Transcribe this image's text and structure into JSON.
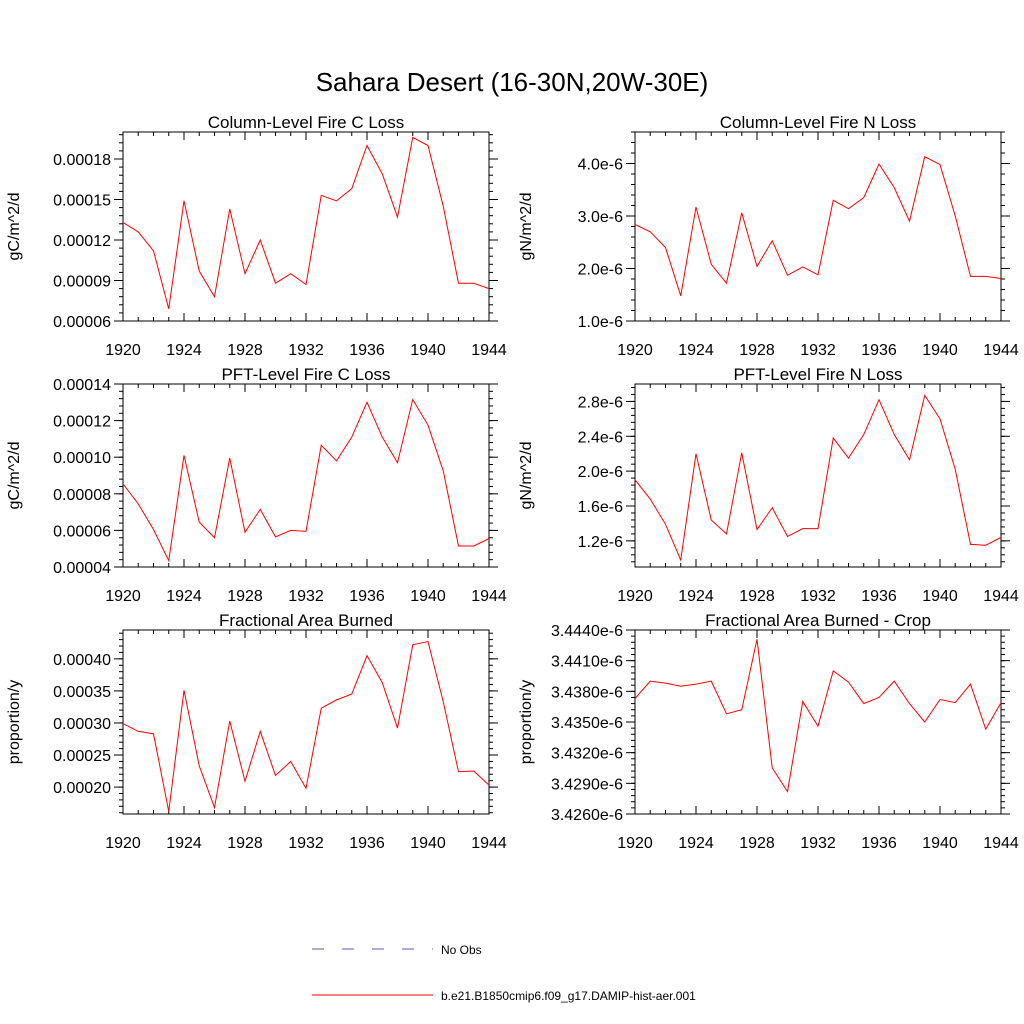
{
  "figure_title": "Sahara Desert (16-30N,20W-30E)",
  "legend": {
    "obs_label": "No Obs",
    "obs_color": "#5a5ab4",
    "model_label": "b.e21.B1850cmip6.f09_g17.DAMIP-hist-aer.001",
    "model_color": "#ff0000"
  },
  "chart_data": [
    {
      "type": "line",
      "title": "Column-Level Fire C Loss",
      "ylabel": "gC/m^2/d",
      "xlim": [
        1920,
        1944
      ],
      "ylim": [
        6e-05,
        0.0002
      ],
      "xticks": [
        1920,
        1924,
        1928,
        1932,
        1936,
        1940,
        1944
      ],
      "yticks": [
        6e-05,
        9e-05,
        0.00012,
        0.00015,
        0.00018
      ],
      "ytick_labels": [
        "0.00006",
        "0.00009",
        "0.00012",
        "0.00015",
        "0.00018"
      ],
      "x": [
        1920,
        1921,
        1922,
        1923,
        1924,
        1925,
        1926,
        1927,
        1928,
        1929,
        1930,
        1931,
        1932,
        1933,
        1934,
        1935,
        1936,
        1937,
        1938,
        1939,
        1940,
        1941,
        1942,
        1943,
        1944
      ],
      "series": [
        {
          "name": "b.e21.B1850cmip6.f09_g17.DAMIP-hist-aer.001",
          "values": [
            0.000133,
            0.000126,
            0.000112,
            6.9e-05,
            0.000149,
            9.7e-05,
            7.8e-05,
            0.000143,
            9.5e-05,
            0.00012,
            8.8e-05,
            9.5e-05,
            8.7e-05,
            0.000153,
            0.000149,
            0.000158,
            0.00019,
            0.000169,
            0.000137,
            0.000196,
            0.00019,
            0.000145,
            8.8e-05,
            8.8e-05,
            8.4e-05
          ]
        }
      ]
    },
    {
      "type": "line",
      "title": "Column-Level Fire N Loss",
      "ylabel": "gN/m^2/d",
      "xlim": [
        1920,
        1944
      ],
      "ylim": [
        1e-06,
        4.6e-06
      ],
      "xticks": [
        1920,
        1924,
        1928,
        1932,
        1936,
        1940,
        1944
      ],
      "yticks": [
        1e-06,
        2e-06,
        3e-06,
        4e-06
      ],
      "ytick_labels": [
        "1.0e-6",
        "2.0e-6",
        "3.0e-6",
        "4.0e-6"
      ],
      "x": [
        1920,
        1921,
        1922,
        1923,
        1924,
        1925,
        1926,
        1927,
        1928,
        1929,
        1930,
        1931,
        1932,
        1933,
        1934,
        1935,
        1936,
        1937,
        1938,
        1939,
        1940,
        1941,
        1942,
        1943,
        1944
      ],
      "series": [
        {
          "name": "b.e21.B1850cmip6.f09_g17.DAMIP-hist-aer.001",
          "values": [
            2.84e-06,
            2.7e-06,
            2.4e-06,
            1.48e-06,
            3.17e-06,
            2.08e-06,
            1.72e-06,
            3.06e-06,
            2.04e-06,
            2.53e-06,
            1.87e-06,
            2.03e-06,
            1.88e-06,
            3.3e-06,
            3.14e-06,
            3.35e-06,
            3.99e-06,
            3.54e-06,
            2.9e-06,
            4.13e-06,
            3.98e-06,
            3e-06,
            1.85e-06,
            1.85e-06,
            1.81e-06
          ]
        }
      ]
    },
    {
      "type": "line",
      "title": "PFT-Level Fire C Loss",
      "ylabel": "gC/m^2/d",
      "xlim": [
        1920,
        1944
      ],
      "ylim": [
        4e-05,
        0.00014
      ],
      "xticks": [
        1920,
        1924,
        1928,
        1932,
        1936,
        1940,
        1944
      ],
      "yticks": [
        4e-05,
        6e-05,
        8e-05,
        0.0001,
        0.00012,
        0.00014
      ],
      "ytick_labels": [
        "0.00004",
        "0.00006",
        "0.00008",
        "0.00010",
        "0.00012",
        "0.00014"
      ],
      "x": [
        1920,
        1921,
        1922,
        1923,
        1924,
        1925,
        1926,
        1927,
        1928,
        1929,
        1930,
        1931,
        1932,
        1933,
        1934,
        1935,
        1936,
        1937,
        1938,
        1939,
        1940,
        1941,
        1942,
        1943,
        1944
      ],
      "series": [
        {
          "name": "b.e21.B1850cmip6.f09_g17.DAMIP-hist-aer.001",
          "values": [
            8.55e-05,
            7.45e-05,
            6.05e-05,
            4.35e-05,
            0.000101,
            6.45e-05,
            5.6e-05,
            9.95e-05,
            5.9e-05,
            7.15e-05,
            5.65e-05,
            6e-05,
            5.95e-05,
            0.0001065,
            9.8e-05,
            0.000111,
            0.00013,
            0.000111,
            9.7e-05,
            0.0001315,
            0.0001175,
            9.25e-05,
            5.15e-05,
            5.15e-05,
            5.55e-05
          ]
        }
      ]
    },
    {
      "type": "line",
      "title": "PFT-Level Fire N Loss",
      "ylabel": "gN/m^2/d",
      "xlim": [
        1920,
        1944
      ],
      "ylim": [
        9e-07,
        3e-06
      ],
      "xticks": [
        1920,
        1924,
        1928,
        1932,
        1936,
        1940,
        1944
      ],
      "yticks": [
        1.2e-06,
        1.6e-06,
        2e-06,
        2.4e-06,
        2.8e-06
      ],
      "ytick_labels": [
        "1.2e-6",
        "1.6e-6",
        "2.0e-6",
        "2.4e-6",
        "2.8e-6"
      ],
      "x": [
        1920,
        1921,
        1922,
        1923,
        1924,
        1925,
        1926,
        1927,
        1928,
        1929,
        1930,
        1931,
        1932,
        1933,
        1934,
        1935,
        1936,
        1937,
        1938,
        1939,
        1940,
        1941,
        1942,
        1943,
        1944
      ],
      "series": [
        {
          "name": "b.e21.B1850cmip6.f09_g17.DAMIP-hist-aer.001",
          "values": [
            1.9e-06,
            1.68e-06,
            1.39e-06,
            9.8e-07,
            2.2e-06,
            1.44e-06,
            1.28e-06,
            2.21e-06,
            1.33e-06,
            1.58e-06,
            1.25e-06,
            1.34e-06,
            1.34e-06,
            2.38e-06,
            2.15e-06,
            2.42e-06,
            2.82e-06,
            2.42e-06,
            2.13e-06,
            2.87e-06,
            2.6e-06,
            2.02e-06,
            1.16e-06,
            1.15e-06,
            1.24e-06
          ]
        }
      ]
    },
    {
      "type": "line",
      "title": "Fractional Area Burned",
      "ylabel": "proportion/y",
      "xlim": [
        1920,
        1944
      ],
      "ylim": [
        0.000158,
        0.000445
      ],
      "xticks": [
        1920,
        1924,
        1928,
        1932,
        1936,
        1940,
        1944
      ],
      "yticks": [
        0.0002,
        0.00025,
        0.0003,
        0.00035,
        0.0004
      ],
      "ytick_labels": [
        "0.00020",
        "0.00025",
        "0.00030",
        "0.00035",
        "0.00040"
      ],
      "x": [
        1920,
        1921,
        1922,
        1923,
        1924,
        1925,
        1926,
        1927,
        1928,
        1929,
        1930,
        1931,
        1932,
        1933,
        1934,
        1935,
        1936,
        1937,
        1938,
        1939,
        1940,
        1941,
        1942,
        1943,
        1944
      ],
      "series": [
        {
          "name": "b.e21.B1850cmip6.f09_g17.DAMIP-hist-aer.001",
          "values": [
            0.000299,
            0.000287,
            0.000283,
            0.000162,
            0.000351,
            0.000233,
            0.000168,
            0.000303,
            0.000209,
            0.000287,
            0.000218,
            0.00024,
            0.000198,
            0.000323,
            0.000336,
            0.000345,
            0.000405,
            0.000363,
            0.000292,
            0.000422,
            0.000427,
            0.000333,
            0.000224,
            0.000225,
            0.000203
          ]
        }
      ]
    },
    {
      "type": "line",
      "title": "Fractional Area Burned - Crop",
      "ylabel": "proportion/y",
      "xlim": [
        1920,
        1944
      ],
      "ylim": [
        3.426e-06,
        3.444e-06
      ],
      "xticks": [
        1920,
        1924,
        1928,
        1932,
        1936,
        1940,
        1944
      ],
      "yticks": [
        3.426e-06,
        3.429e-06,
        3.432e-06,
        3.435e-06,
        3.438e-06,
        3.441e-06,
        3.444e-06
      ],
      "ytick_labels": [
        "3.4260e-6",
        "3.4290e-6",
        "3.4320e-6",
        "3.4350e-6",
        "3.4380e-6",
        "3.4410e-6",
        "3.4440e-6"
      ],
      "x": [
        1920,
        1921,
        1922,
        1923,
        1924,
        1925,
        1926,
        1927,
        1928,
        1929,
        1930,
        1931,
        1932,
        1933,
        1934,
        1935,
        1936,
        1937,
        1938,
        1939,
        1940,
        1941,
        1942,
        1943,
        1944
      ],
      "series": [
        {
          "name": "b.e21.B1850cmip6.f09_g17.DAMIP-hist-aer.001",
          "values": [
            3.4373e-06,
            3.439e-06,
            3.4388e-06,
            3.4385e-06,
            3.4387e-06,
            3.439e-06,
            3.4358e-06,
            3.4362e-06,
            3.4431e-06,
            3.4305e-06,
            3.4282e-06,
            3.437e-06,
            3.4346e-06,
            3.44e-06,
            3.4389e-06,
            3.4368e-06,
            3.4374e-06,
            3.439e-06,
            3.4368e-06,
            3.435e-06,
            3.4372e-06,
            3.4369e-06,
            3.4387e-06,
            3.4343e-06,
            3.4369e-06
          ]
        }
      ]
    }
  ]
}
